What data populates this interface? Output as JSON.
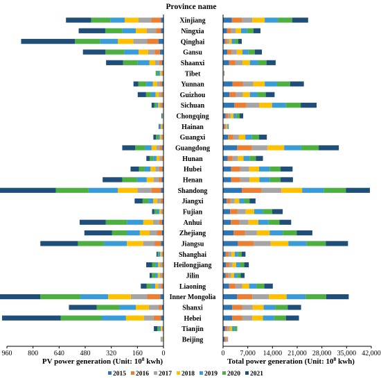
{
  "chart_data": {
    "type": "bar",
    "stacked": true,
    "layout": "butterfly (back-to-back horizontal stacked bars)",
    "title": "Province name",
    "categories": [
      "Xinjiang",
      "Ningxia",
      "Qinghai",
      "Gansu",
      "Shaanxi",
      "Tibet",
      "Yunnan",
      "Guizhou",
      "Sichuan",
      "Chongqing",
      "Hainan",
      "Guangxi",
      "Guangdong",
      "Hunan",
      "Hubei",
      "Henan",
      "Shandong",
      "Jiangxi",
      "Fujian",
      "Anhui",
      "Zhejiang",
      "Jiangsu",
      "Shanghai",
      "Heilongjiang",
      "Jilin",
      "Liaoning",
      "Inner Mongolia",
      "Shanxi",
      "Hebei",
      "Tianjin",
      "Beijing"
    ],
    "series_names": [
      "2015",
      "2016",
      "2017",
      "2018",
      "2019",
      "2020",
      "2021"
    ],
    "colors": [
      "#2e75b6",
      "#ed7d31",
      "#a5a5a5",
      "#ffc000",
      "#3a9bd9",
      "#4caf3f",
      "#1f4e79"
    ],
    "left_panel": {
      "xlabel": "PV power generation (Unit: 10",
      "xlabel_sup": "8",
      "xlabel_tail": " kwh)",
      "ticks": [
        "960",
        "800",
        "640",
        "480",
        "320",
        "160",
        "0"
      ],
      "xlim": [
        0,
        960
      ],
      "direction": "reversed",
      "values": [
        [
          16,
          60,
          77,
          85,
          88,
          118,
          154
        ],
        [
          15,
          31,
          56,
          68,
          82,
          105,
          163
        ],
        [
          30,
          70,
          85,
          95,
          108,
          155,
          330
        ],
        [
          22,
          32,
          40,
          59,
          88,
          115,
          138
        ],
        [
          10,
          16,
          25,
          36,
          71,
          90,
          104
        ],
        [
          2,
          4,
          6,
          10,
          14,
          12,
          0
        ],
        [
          8,
          13,
          19,
          25,
          40,
          49,
          30
        ],
        [
          3,
          10,
          16,
          20,
          28,
          30,
          51
        ],
        [
          5,
          10,
          8,
          10,
          10,
          13,
          17
        ],
        [
          0,
          1,
          1,
          2,
          3,
          3,
          3
        ],
        [
          2,
          4,
          5,
          6,
          8,
          0,
          4
        ],
        [
          2,
          4,
          7,
          10,
          11,
          12,
          16
        ],
        [
          8,
          15,
          20,
          30,
          40,
          60,
          80
        ],
        [
          3,
          9,
          13,
          18,
          20,
          22,
          20
        ],
        [
          7,
          19,
          24,
          30,
          35,
          35,
          52
        ],
        [
          11,
          20,
          30,
          42,
          60,
          90,
          120
        ],
        [
          15,
          60,
          85,
          120,
          180,
          200,
          390
        ],
        [
          5,
          13,
          20,
          25,
          30,
          35,
          49
        ],
        [
          3,
          5,
          8,
          10,
          14,
          16,
          14
        ],
        [
          10,
          16,
          38,
          60,
          100,
          130,
          160
        ],
        [
          10,
          30,
          45,
          60,
          80,
          90,
          170
        ],
        [
          15,
          40,
          70,
          100,
          140,
          160,
          230
        ],
        [
          2,
          4,
          6,
          8,
          11,
          5,
          7
        ],
        [
          3,
          6,
          12,
          12,
          16,
          21,
          36
        ],
        [
          3,
          7,
          12,
          13,
          16,
          20,
          14
        ],
        [
          5,
          11,
          17,
          18,
          23,
          29,
          36
        ],
        [
          20,
          80,
          100,
          140,
          170,
          245,
          285
        ],
        [
          10,
          20,
          60,
          80,
          100,
          140,
          170
        ],
        [
          15,
          45,
          60,
          110,
          150,
          250,
          360
        ],
        [
          1,
          3,
          5,
          8,
          10,
          11,
          21
        ],
        [
          1,
          2,
          4,
          5,
          5,
          0,
          0
        ]
      ]
    },
    "right_panel": {
      "xlabel": "Total power generation (Unit: 10",
      "xlabel_sup": "8",
      "xlabel_tail": " kwh)",
      "ticks": [
        "0",
        "7000",
        "14000",
        "21000",
        "28000",
        "35000",
        "42000"
      ],
      "xlim": [
        0,
        42000
      ],
      "values": [
        [
          2500,
          2800,
          3000,
          3500,
          3700,
          4100,
          4500
        ],
        [
          1100,
          1200,
          1300,
          1500,
          1700,
          1800,
          2000
        ],
        [
          550,
          600,
          600,
          700,
          900,
          950,
          1000
        ],
        [
          1200,
          1300,
          1400,
          1600,
          1700,
          1800,
          2000
        ],
        [
          1700,
          1800,
          2000,
          2100,
          2300,
          2400,
          2600
        ],
        [
          30,
          50,
          60,
          80,
          90,
          110,
          0
        ],
        [
          2700,
          2900,
          3000,
          3200,
          3500,
          3700,
          3900
        ],
        [
          1800,
          1900,
          1900,
          2000,
          2200,
          2300,
          2500
        ],
        [
          3200,
          3400,
          3600,
          3700,
          3900,
          4200,
          4500
        ],
        [
          700,
          700,
          750,
          800,
          850,
          900,
          1000
        ],
        [
          280,
          310,
          330,
          340,
          350,
          0,
          0
        ],
        [
          1400,
          1500,
          1600,
          1800,
          1900,
          2000,
          2200
        ],
        [
          4000,
          4200,
          4400,
          4700,
          4800,
          5000,
          5700
        ],
        [
          1300,
          1400,
          1500,
          1600,
          1700,
          1800,
          2000
        ],
        [
          2300,
          2500,
          2600,
          2800,
          3000,
          3100,
          3400
        ],
        [
          2300,
          2500,
          2700,
          2800,
          2900,
          3100,
          3500
        ],
        [
          5300,
          5500,
          5700,
          5900,
          6100,
          6300,
          6800
        ],
        [
          1000,
          1100,
          1200,
          1300,
          1400,
          1500,
          1700
        ],
        [
          2000,
          2100,
          2300,
          2400,
          2500,
          2600,
          3000
        ],
        [
          2200,
          2400,
          2600,
          2800,
          2900,
          3100,
          3300
        ],
        [
          3000,
          3200,
          3400,
          3600,
          3700,
          4000,
          4400
        ],
        [
          4200,
          4500,
          4800,
          5000,
          5200,
          5400,
          6300
        ],
        [
          750,
          800,
          850,
          900,
          950,
          1000,
          1100
        ],
        [
          850,
          900,
          950,
          1000,
          1100,
          1200,
          1300
        ],
        [
          700,
          750,
          800,
          850,
          900,
          1000,
          1100
        ],
        [
          1700,
          1800,
          1900,
          2000,
          2100,
          2200,
          2400
        ],
        [
          4000,
          4300,
          4700,
          5000,
          5400,
          5800,
          6400
        ],
        [
          2600,
          2800,
          3000,
          3100,
          3300,
          3500,
          3800
        ],
        [
          2600,
          2800,
          2900,
          3000,
          3200,
          3300,
          3700
        ],
        [
          600,
          620,
          650,
          700,
          700,
          750,
          0
        ],
        [
          450,
          480,
          500,
          0,
          0,
          0,
          0
        ]
      ]
    }
  }
}
